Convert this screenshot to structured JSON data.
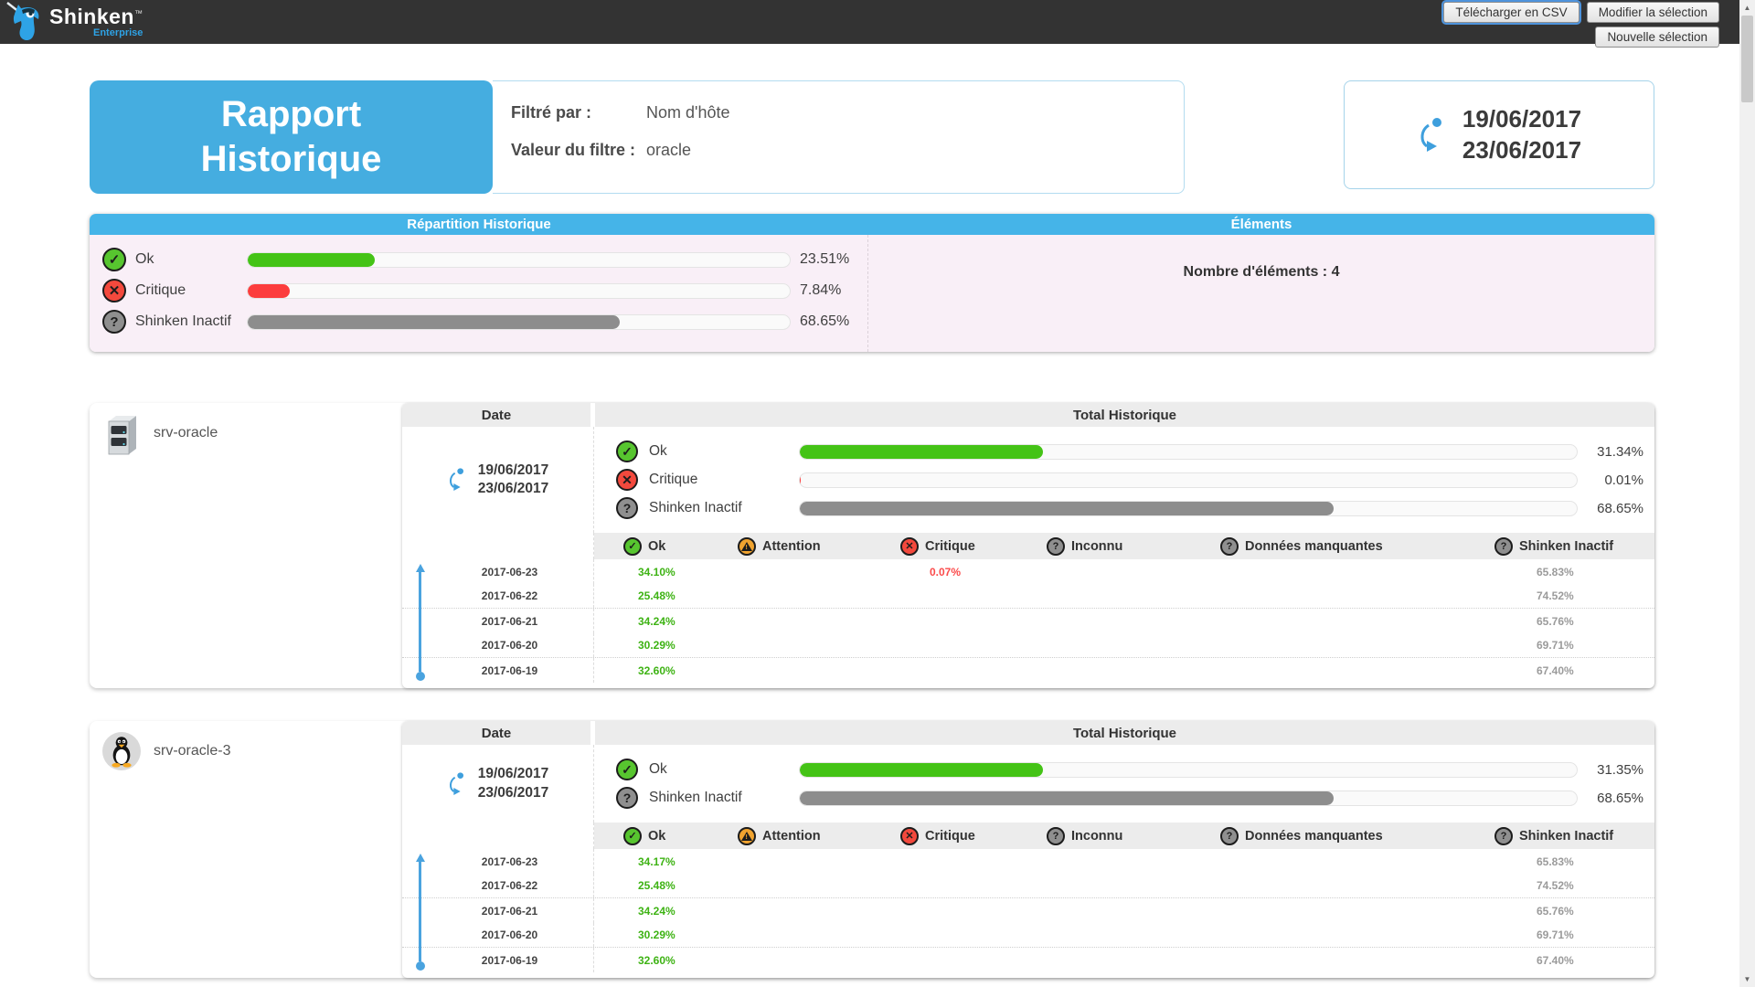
{
  "topbar": {
    "brand": "Shinken",
    "brand_tm": "™",
    "brand_sub": "Enterprise",
    "buttons": {
      "download_csv": "Télécharger en CSV",
      "modify_selection": "Modifier la sélection",
      "new_selection": "Nouvelle sélection"
    }
  },
  "header": {
    "title_line1": "Rapport",
    "title_line2": "Historique",
    "filtered_by_label": "Filtré par :",
    "filtered_by_value": "Nom d'hôte",
    "filter_value_label": "Valeur du filtre :",
    "filter_value": "oracle",
    "date_range": {
      "start": "19/06/2017",
      "end": "23/06/2017"
    }
  },
  "summary": {
    "left_title": "Répartition Historique",
    "right_title": "Éléments",
    "rows": [
      {
        "label": "Ok",
        "percent": 23.51,
        "percent_text": "23.51%",
        "color": "#44c316"
      },
      {
        "label": "Critique",
        "percent": 7.84,
        "percent_text": "7.84%",
        "color": "#fc3d3d"
      },
      {
        "label": "Shinken Inactif",
        "percent": 68.65,
        "percent_text": "68.65%",
        "color": "#8d8d8d"
      }
    ],
    "elements_count_text": "Nombre d'éléments : 4"
  },
  "labels": {
    "date_header": "Date",
    "total_header": "Total Historique"
  },
  "table_columns": [
    "Ok",
    "Attention",
    "Critique",
    "Inconnu",
    "Données manquantes",
    "Shinken Inactif"
  ],
  "status_colors": {
    "ok": "#44c316",
    "warning": "#f0a32f",
    "critical": "#fc3d3d",
    "unknown": "#8d8d8d"
  },
  "hosts": [
    {
      "name": "srv-oracle",
      "date_range": {
        "start": "19/06/2017",
        "end": "23/06/2017"
      },
      "totals": [
        {
          "label": "Ok",
          "percent": 31.34,
          "percent_text": "31.34%",
          "color": "#44c316"
        },
        {
          "label": "Critique",
          "percent": 0.01,
          "percent_text": "0.01%",
          "color": "#fc3d3d"
        },
        {
          "label": "Shinken Inactif",
          "percent": 68.65,
          "percent_text": "68.65%",
          "color": "#8d8d8d"
        }
      ],
      "rows": [
        {
          "date": "2017-06-23",
          "ok": "34.10%",
          "attention": "",
          "critique": "0.07%",
          "inconnu": "",
          "donnees_manquantes": "",
          "shinken_inactif": "65.83%"
        },
        {
          "date": "2017-06-22",
          "ok": "25.48%",
          "attention": "",
          "critique": "",
          "inconnu": "",
          "donnees_manquantes": "",
          "shinken_inactif": "74.52%"
        },
        {
          "date": "2017-06-21",
          "ok": "34.24%",
          "attention": "",
          "critique": "",
          "inconnu": "",
          "donnees_manquantes": "",
          "shinken_inactif": "65.76%"
        },
        {
          "date": "2017-06-20",
          "ok": "30.29%",
          "attention": "",
          "critique": "",
          "inconnu": "",
          "donnees_manquantes": "",
          "shinken_inactif": "69.71%"
        },
        {
          "date": "2017-06-19",
          "ok": "32.60%",
          "attention": "",
          "critique": "",
          "inconnu": "",
          "donnees_manquantes": "",
          "shinken_inactif": "67.40%"
        }
      ]
    },
    {
      "name": "srv-oracle-3",
      "date_range": {
        "start": "19/06/2017",
        "end": "23/06/2017"
      },
      "totals": [
        {
          "label": "Ok",
          "percent": 31.35,
          "percent_text": "31.35%",
          "color": "#44c316"
        },
        {
          "label": "Shinken Inactif",
          "percent": 68.65,
          "percent_text": "68.65%",
          "color": "#8d8d8d"
        }
      ],
      "rows": [
        {
          "date": "2017-06-23",
          "ok": "34.17%",
          "attention": "",
          "critique": "",
          "inconnu": "",
          "donnees_manquantes": "",
          "shinken_inactif": "65.83%"
        },
        {
          "date": "2017-06-22",
          "ok": "25.48%",
          "attention": "",
          "critique": "",
          "inconnu": "",
          "donnees_manquantes": "",
          "shinken_inactif": "74.52%"
        },
        {
          "date": "2017-06-21",
          "ok": "34.24%",
          "attention": "",
          "critique": "",
          "inconnu": "",
          "donnees_manquantes": "",
          "shinken_inactif": "65.76%"
        },
        {
          "date": "2017-06-20",
          "ok": "30.29%",
          "attention": "",
          "critique": "",
          "inconnu": "",
          "donnees_manquantes": "",
          "shinken_inactif": "69.71%"
        },
        {
          "date": "2017-06-19",
          "ok": "32.60%",
          "attention": "",
          "critique": "",
          "inconnu": "",
          "donnees_manquantes": "",
          "shinken_inactif": "67.40%"
        }
      ]
    }
  ]
}
